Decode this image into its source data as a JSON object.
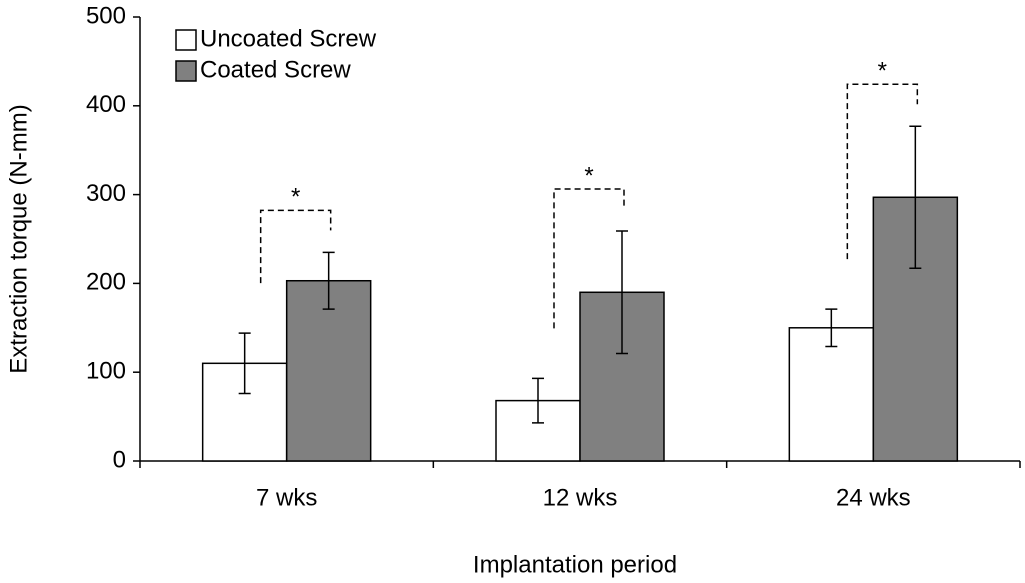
{
  "chart_data": {
    "type": "bar",
    "x_label": "Implantation period",
    "y_label": "Extraction torque (N-mm)",
    "categories": [
      "7 wks",
      "12 wks",
      "24 wks"
    ],
    "series": [
      {
        "name": "Uncoated Screw",
        "color": "#ffffff",
        "values": [
          110,
          68,
          150
        ],
        "errors": [
          34,
          25,
          21
        ]
      },
      {
        "name": "Coated Screw",
        "color": "#808080",
        "values": [
          203,
          190,
          297
        ],
        "errors": [
          32,
          69,
          80
        ]
      }
    ],
    "annotations": [
      "*",
      "*",
      "*"
    ],
    "ylim": [
      0,
      500
    ],
    "yticks": [
      0,
      100,
      200,
      300,
      400,
      500
    ],
    "legend": "upper-left"
  }
}
